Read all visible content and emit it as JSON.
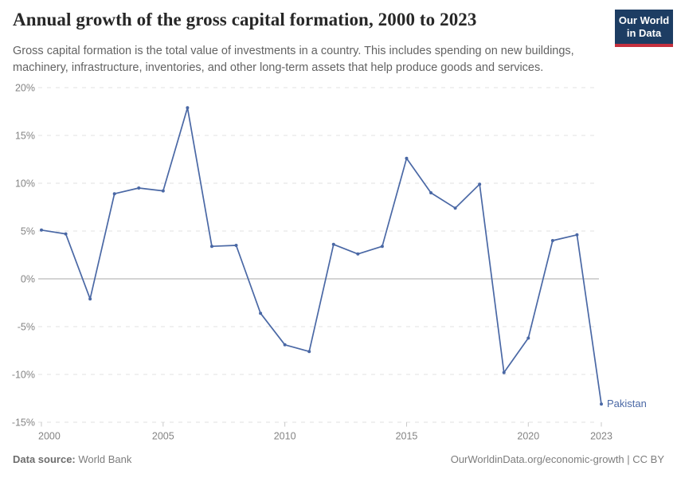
{
  "header": {
    "title": "Annual growth of the gross capital formation, 2000 to 2023",
    "subtitle": "Gross capital formation is the total value of investments in a country. This includes spending on new buildings, machinery, infrastructure, inventories, and other long-term assets that help produce goods and services.",
    "logo": {
      "line1": "Our World",
      "line2": "in Data"
    }
  },
  "chart_data": {
    "type": "line",
    "title": "Annual growth of the gross capital formation, 2000 to 2023",
    "x": [
      2000,
      2001,
      2002,
      2003,
      2004,
      2005,
      2006,
      2007,
      2008,
      2009,
      2010,
      2011,
      2012,
      2013,
      2014,
      2015,
      2016,
      2017,
      2018,
      2019,
      2020,
      2021,
      2022,
      2023
    ],
    "series": [
      {
        "name": "Pakistan",
        "values": [
          5.1,
          4.7,
          -2.1,
          8.9,
          9.5,
          9.2,
          17.9,
          3.4,
          3.5,
          -3.6,
          -6.9,
          -7.6,
          3.6,
          2.6,
          3.4,
          12.6,
          9.0,
          7.4,
          9.9,
          -9.8,
          -6.2,
          4.0,
          4.6,
          -13.1
        ]
      }
    ],
    "xlabel": "",
    "ylabel": "",
    "xlim": [
      2000,
      2023
    ],
    "ylim": [
      -15,
      20
    ],
    "y_ticks": [
      20,
      15,
      10,
      5,
      0,
      -5,
      -10,
      -15
    ],
    "y_tick_suffix": "%",
    "x_ticks": [
      2000,
      2005,
      2010,
      2015,
      2020,
      2023
    ],
    "grid": "horizontal-dashed",
    "legend_position": "end-of-line-label"
  },
  "colors": {
    "line": "#4a68a5",
    "grid": "#e0e0e0",
    "zero_line": "#a8a8a8",
    "tick_text": "#848484",
    "tick_mark": "#c9c9c9",
    "logo_bg": "#1d3d63",
    "logo_stripe": "#c5303e"
  },
  "footer": {
    "source_label": "Data source:",
    "source_value": "World Bank",
    "credit": "OurWorldinData.org/economic-growth | CC BY"
  }
}
